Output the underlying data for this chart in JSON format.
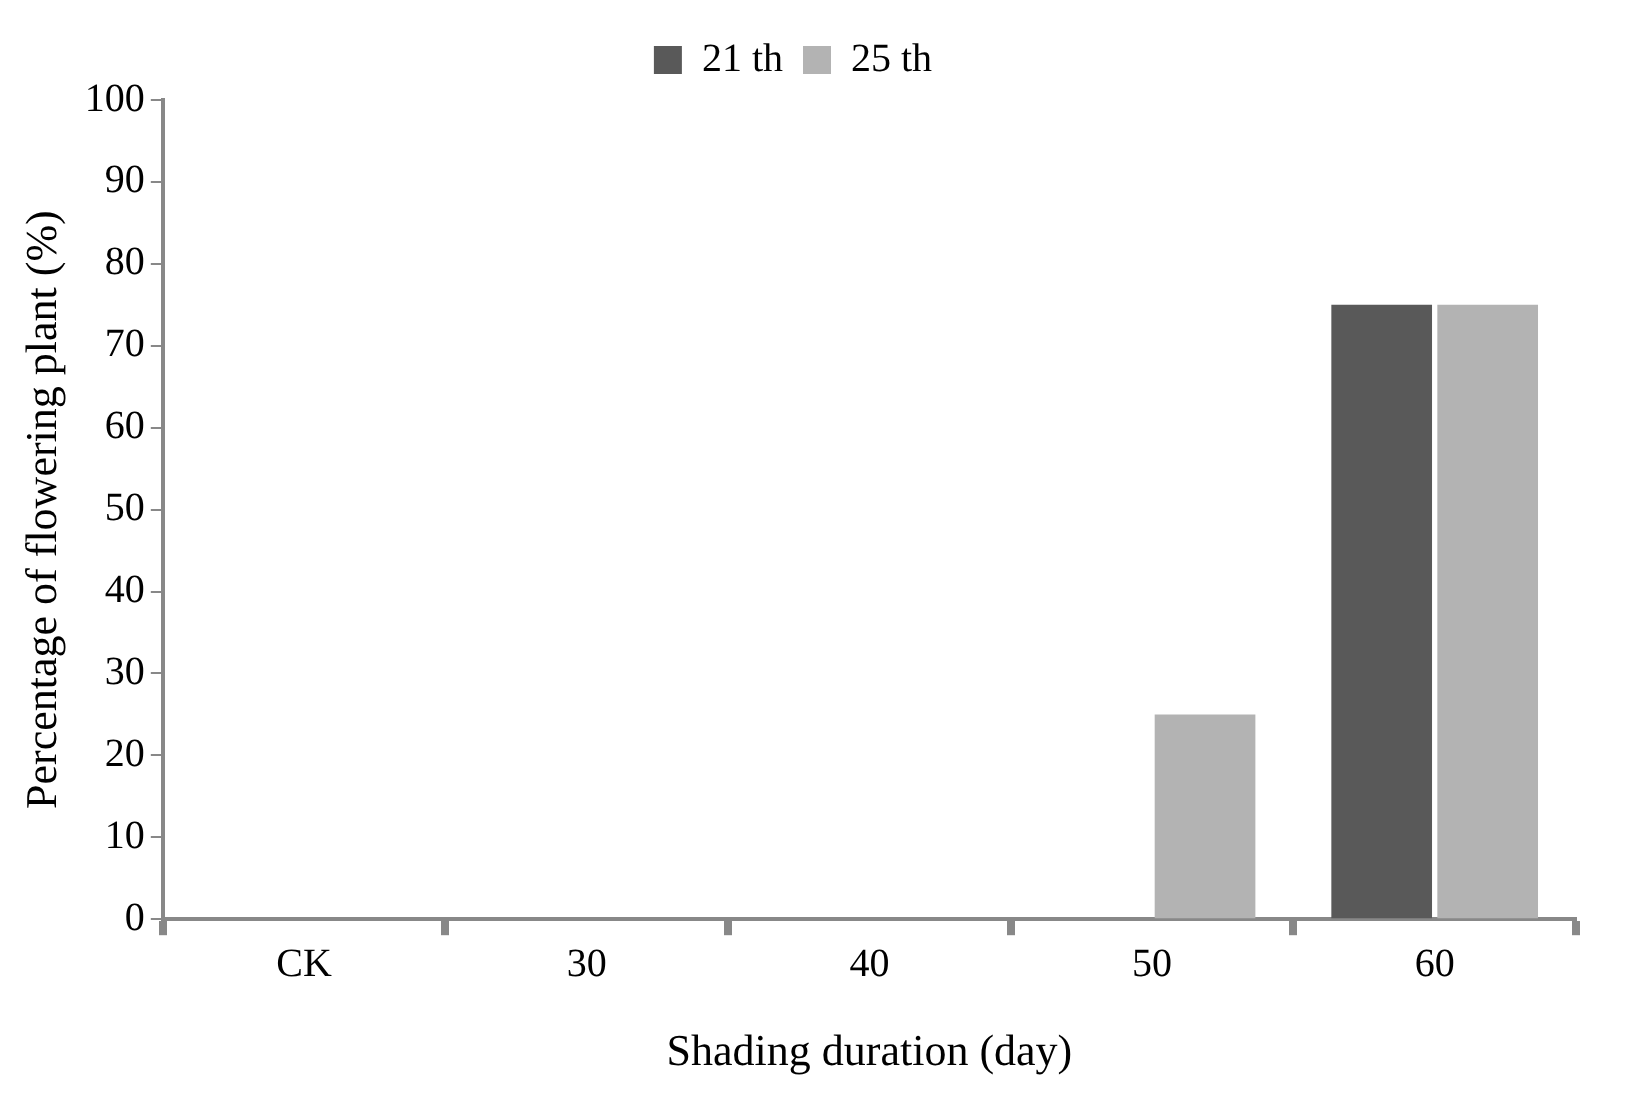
{
  "chart_data": {
    "type": "bar",
    "xlabel": "Shading duration (day)",
    "ylabel": "Percentage of flowering plant (%)",
    "categories": [
      "CK",
      "30",
      "40",
      "50",
      "60"
    ],
    "series": [
      {
        "name": "21 th",
        "color": "#595959",
        "values": [
          0,
          0,
          0,
          0,
          75
        ]
      },
      {
        "name": "25 th",
        "color": "#b3b3b3",
        "values": [
          0,
          0,
          0,
          25,
          75
        ]
      }
    ],
    "ylim": [
      0,
      100
    ],
    "yticks": [
      0,
      10,
      20,
      30,
      40,
      50,
      60,
      70,
      80,
      90,
      100
    ],
    "grid": false,
    "legend": "top"
  }
}
